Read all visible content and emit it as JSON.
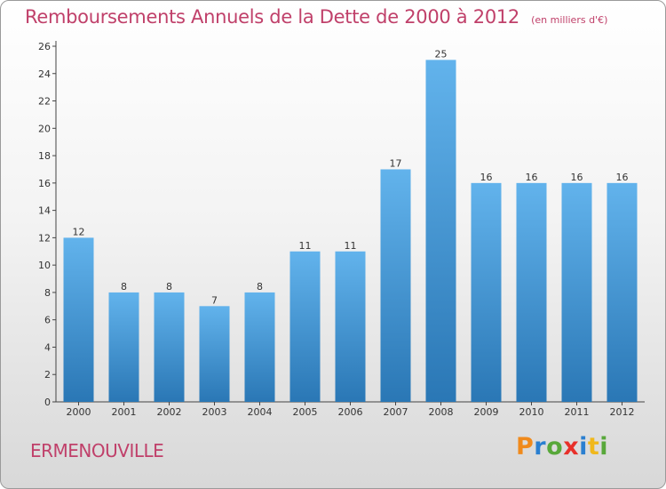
{
  "chart_data": {
    "type": "bar",
    "title": "Remboursements Annuels de la Dette de 2000 à 2012",
    "subtitle": "(en milliers d'€)",
    "categories": [
      "2000",
      "2001",
      "2002",
      "2003",
      "2004",
      "2005",
      "2006",
      "2007",
      "2008",
      "2009",
      "2010",
      "2011",
      "2012"
    ],
    "values": [
      12,
      8,
      8,
      7,
      8,
      11,
      11,
      17,
      25,
      16,
      16,
      16,
      16
    ],
    "ylim": [
      0,
      26
    ],
    "yticks": [
      0,
      2,
      4,
      6,
      8,
      10,
      12,
      14,
      16,
      18,
      20,
      22,
      24,
      26
    ],
    "grid": false,
    "bar_color_top": "#62b3ec",
    "bar_color_bottom": "#2a77b5"
  },
  "footer": {
    "town": "ERMENOUVILLE",
    "logo": "Proxiti",
    "logo_colors": [
      "#f08a1c",
      "#2a7fd0",
      "#58a83a",
      "#e8302a",
      "#2a7fd0",
      "#f0b81c",
      "#58a83a"
    ]
  },
  "colors": {
    "title": "#c0406a",
    "axis": "#444444"
  }
}
